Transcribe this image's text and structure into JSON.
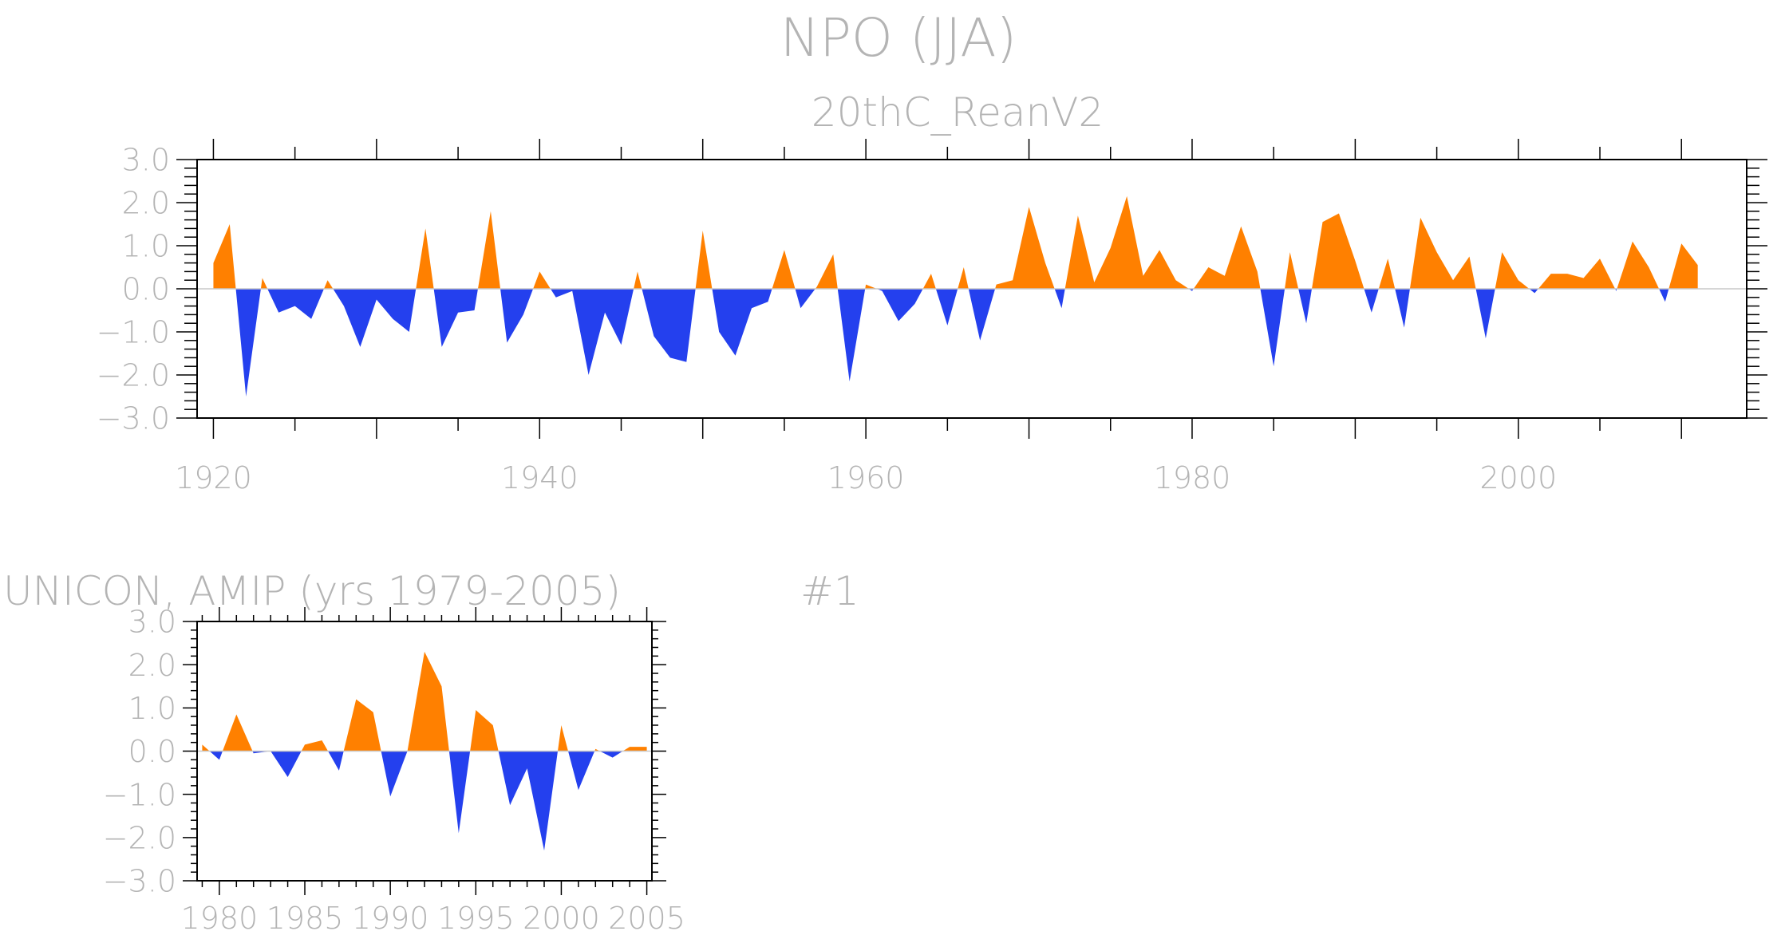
{
  "page": {
    "title": "NPO (JJA)"
  },
  "colors": {
    "positive": "#ff8000",
    "negative": "#2440ee",
    "text": "#b4b4b4"
  },
  "chart_data": [
    {
      "type": "area",
      "title": "20thC_ReanV2",
      "xlabel": "",
      "ylabel": "",
      "xlim": [
        1919,
        2014
      ],
      "ylim": [
        -3,
        3
      ],
      "xticks": [
        "1920",
        "1940",
        "1960",
        "1980",
        "2000"
      ],
      "yticks": [
        "3.0",
        "2.0",
        "1.0",
        "0.0",
        "−1.0",
        "−2.0",
        "−3.0"
      ],
      "grid": false,
      "fill_above": "#ff8000",
      "fill_below": "#2440ee",
      "x": [
        1920,
        1921,
        1922,
        1923,
        1924,
        1925,
        1926,
        1927,
        1928,
        1929,
        1930,
        1931,
        1932,
        1933,
        1934,
        1935,
        1936,
        1937,
        1938,
        1939,
        1940,
        1941,
        1942,
        1943,
        1944,
        1945,
        1946,
        1947,
        1948,
        1949,
        1950,
        1951,
        1952,
        1953,
        1954,
        1955,
        1956,
        1957,
        1958,
        1959,
        1960,
        1961,
        1962,
        1963,
        1964,
        1965,
        1966,
        1967,
        1968,
        1969,
        1970,
        1971,
        1972,
        1973,
        1974,
        1975,
        1976,
        1977,
        1978,
        1979,
        1980,
        1981,
        1982,
        1983,
        1984,
        1985,
        1986,
        1987,
        1988,
        1989,
        1990,
        1991,
        1992,
        1993,
        1994,
        1995,
        1996,
        1997,
        1998,
        1999,
        2000,
        2001,
        2002,
        2003,
        2004,
        2005,
        2006,
        2007,
        2008,
        2009,
        2010,
        2011
      ],
      "values": [
        0.6,
        1.5,
        -2.5,
        0.25,
        -0.55,
        -0.4,
        -0.7,
        0.2,
        -0.4,
        -1.35,
        -0.25,
        -0.7,
        -1.0,
        1.4,
        -1.35,
        -0.55,
        -0.5,
        1.8,
        -1.25,
        -0.6,
        0.4,
        -0.2,
        -0.05,
        -2.0,
        -0.55,
        -1.3,
        0.4,
        -1.1,
        -1.6,
        -1.7,
        1.35,
        -1.0,
        -1.55,
        -0.45,
        -0.3,
        0.9,
        -0.45,
        0.05,
        0.8,
        -2.15,
        0.1,
        -0.05,
        -0.75,
        -0.35,
        0.35,
        -0.85,
        0.5,
        -1.2,
        0.1,
        0.2,
        1.9,
        0.6,
        -0.45,
        1.7,
        0.15,
        0.95,
        2.15,
        0.3,
        0.9,
        0.2,
        -0.05,
        0.5,
        0.3,
        1.45,
        0.4,
        -1.8,
        0.85,
        -0.8,
        1.55,
        1.75,
        0.65,
        -0.55,
        0.7,
        -0.9,
        1.65,
        0.85,
        0.2,
        0.75,
        -1.15,
        0.85,
        0.2,
        -0.1,
        0.35,
        0.35,
        0.25,
        0.7,
        -0.05,
        1.1,
        0.5,
        -0.3,
        1.05,
        0.55
      ]
    },
    {
      "type": "area",
      "title": "UNICON, AMIP (yrs 1979-2005)",
      "title_right": "#1",
      "xlabel": "",
      "ylabel": "",
      "xlim": [
        1978.7,
        2005.3
      ],
      "ylim": [
        -3,
        3
      ],
      "xticks": [
        "1980",
        "1985",
        "1990",
        "1995",
        "2000",
        "2005"
      ],
      "yticks": [
        "3.0",
        "2.0",
        "1.0",
        "0.0",
        "−1.0",
        "−2.0",
        "−3.0"
      ],
      "grid": false,
      "fill_above": "#ff8000",
      "fill_below": "#2440ee",
      "x": [
        1979,
        1980,
        1981,
        1982,
        1983,
        1984,
        1985,
        1986,
        1987,
        1988,
        1989,
        1990,
        1991,
        1992,
        1993,
        1994,
        1995,
        1996,
        1997,
        1998,
        1999,
        2000,
        2001,
        2002,
        2003,
        2004,
        2005
      ],
      "values": [
        0.15,
        -0.2,
        0.85,
        -0.05,
        0.0,
        -0.6,
        0.15,
        0.25,
        -0.45,
        1.2,
        0.9,
        -1.05,
        0.0,
        2.3,
        1.5,
        -1.9,
        0.95,
        0.6,
        -1.25,
        -0.4,
        -2.3,
        0.6,
        -0.9,
        0.05,
        -0.15,
        0.1,
        0.1
      ]
    }
  ]
}
